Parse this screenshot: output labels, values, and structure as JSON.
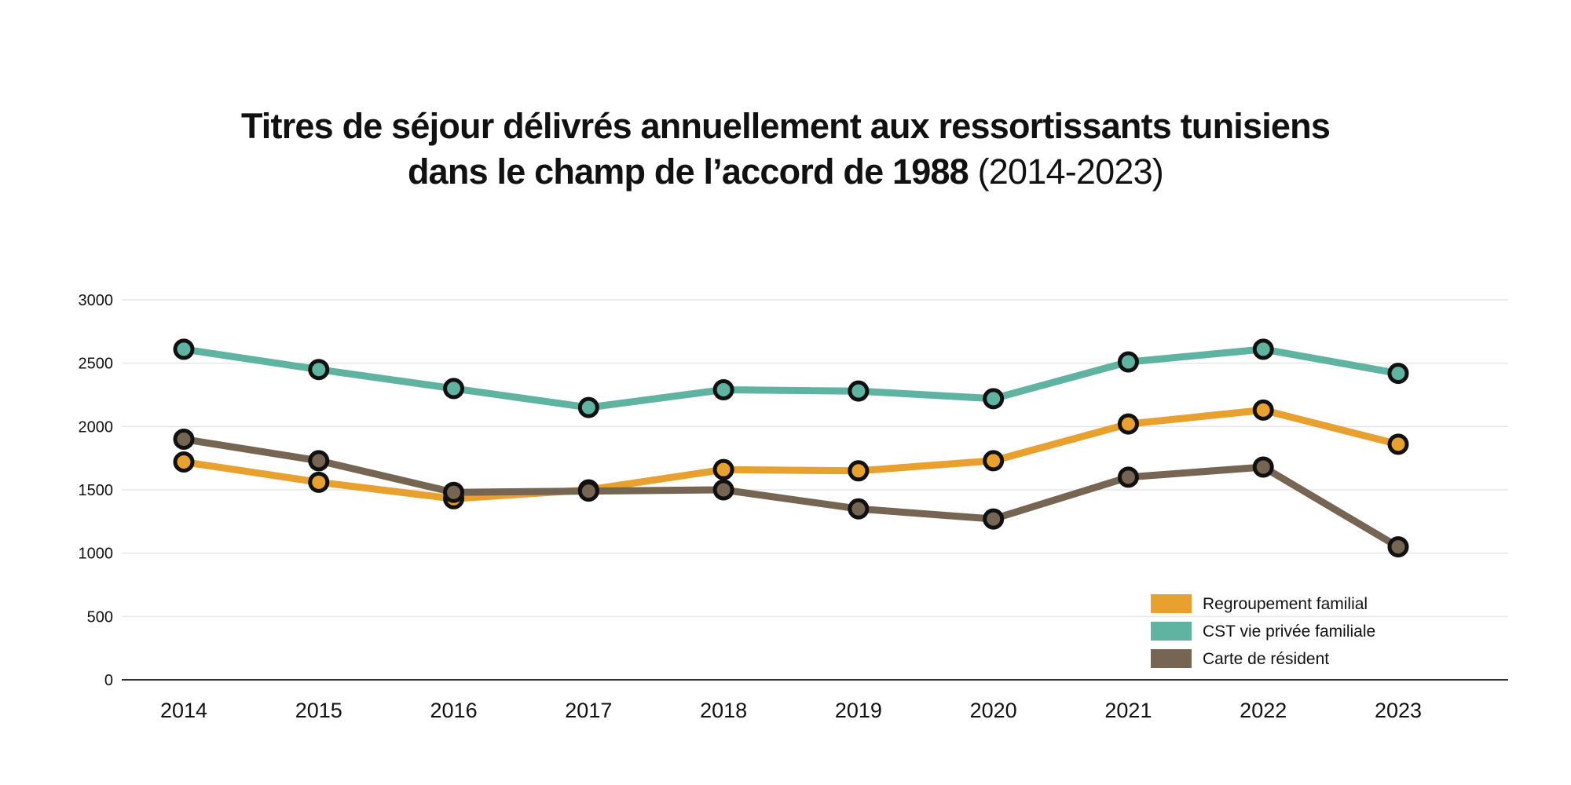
{
  "title": {
    "line1": "Titres de séjour délivrés annuellement aux ressortissants tunisiens",
    "line2_bold": "dans le champ de l’accord de 1988",
    "line2_normal": "(2014-2023)"
  },
  "chart_data": {
    "type": "line",
    "x": [
      "2014",
      "2015",
      "2016",
      "2017",
      "2018",
      "2019",
      "2020",
      "2021",
      "2022",
      "2023"
    ],
    "ylim": [
      0,
      3000
    ],
    "yticks": [
      0,
      500,
      1000,
      1500,
      2000,
      2500,
      3000
    ],
    "grid": true,
    "legend_position": "bottom-right",
    "series": [
      {
        "name": "Regroupement familial",
        "color": "#E8A02E",
        "values": [
          1720,
          1560,
          1430,
          1500,
          1660,
          1650,
          1730,
          2020,
          2130,
          1860
        ]
      },
      {
        "name": "CST vie privée familiale",
        "color": "#5FB3A1",
        "values": [
          2610,
          2450,
          2300,
          2150,
          2290,
          2280,
          2220,
          2510,
          2610,
          2420
        ]
      },
      {
        "name": "Carte de résident",
        "color": "#756552",
        "values": [
          1900,
          1730,
          1480,
          1490,
          1500,
          1350,
          1270,
          1600,
          1680,
          1050
        ]
      }
    ],
    "marker_outline": "#111111",
    "grid_color": "#e6e6e6",
    "axis_color": "#333333"
  }
}
